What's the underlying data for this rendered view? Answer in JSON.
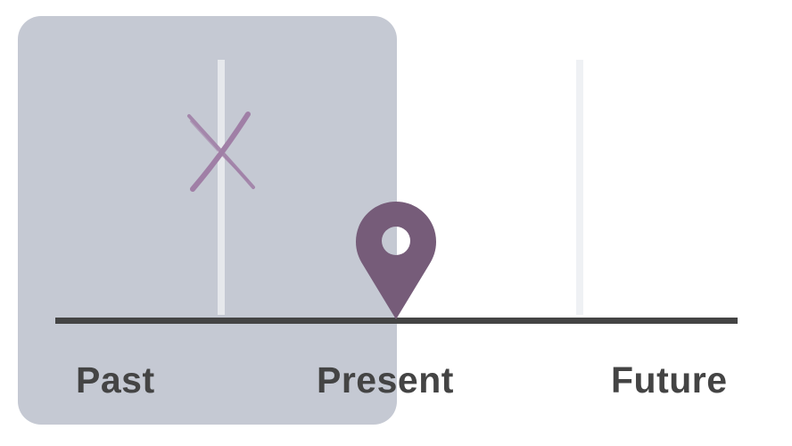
{
  "timeline": {
    "labels": {
      "past": "Past",
      "present": "Present",
      "future": "Future"
    },
    "icons": {
      "past_marker": "cross-icon",
      "present_marker": "location-pin-icon"
    }
  },
  "colors": {
    "past_panel": "#c5c9d3",
    "past_post": "#e6e8ec",
    "future_post": "#eff1f4",
    "axis": "#444444",
    "label_text": "#444444",
    "pin": "#765c79",
    "cross": "#a07fa6"
  }
}
